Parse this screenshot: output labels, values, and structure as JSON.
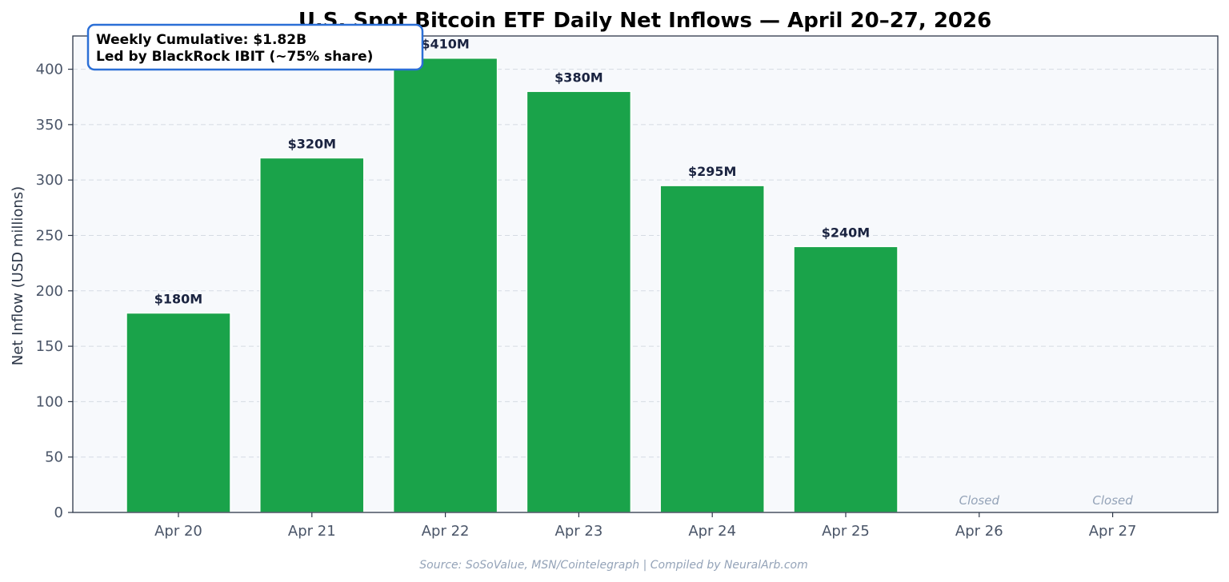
{
  "chart_data": {
    "type": "bar",
    "title": "U.S. Spot Bitcoin ETF Daily Net Inflows — April 20–27, 2026",
    "xlabel": "",
    "ylabel": "Net Inflow (USD millions)",
    "ylim": [
      0,
      430
    ],
    "yticks": [
      0,
      50,
      100,
      150,
      200,
      250,
      300,
      350,
      400
    ],
    "grid": "horizontal-dashed",
    "categories": [
      "Apr 20",
      "Apr 21",
      "Apr 22",
      "Apr 23",
      "Apr 24",
      "Apr 25",
      "Apr 26",
      "Apr 27"
    ],
    "values": [
      180,
      320,
      410,
      380,
      295,
      240,
      0,
      0
    ],
    "labels": [
      "$180M",
      "$320M",
      "$410M",
      "$380M",
      "$295M",
      "$240M",
      "Closed",
      "Closed"
    ],
    "bar_color": "#1aa34a",
    "annotation": {
      "line1": "Weekly Cumulative: $1.82B",
      "line2": "Led by BlackRock IBIT (~75% share)",
      "border_color": "#2b6fd6"
    },
    "source": "Source: SoSoValue, MSN/Cointelegraph | Compiled by NeuralArb.com"
  }
}
